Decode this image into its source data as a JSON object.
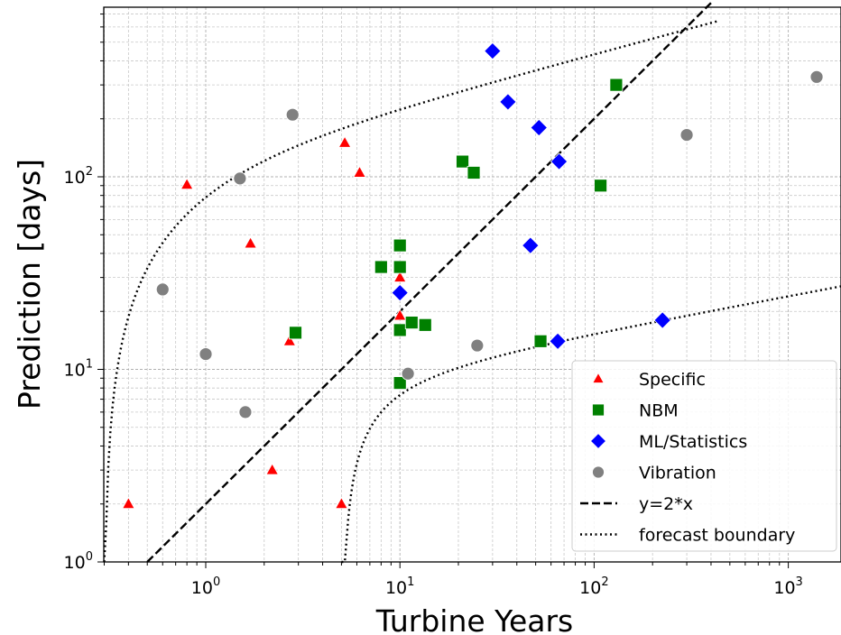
{
  "chart_data": {
    "type": "scatter",
    "xlabel": "Turbine Years",
    "ylabel": "Prediction [days]",
    "x_scale": "log",
    "y_scale": "log",
    "xlim": [
      0.3,
      1900
    ],
    "ylim": [
      1,
      800
    ],
    "grid": true,
    "legend_position": "lower-right",
    "x_ticks": [
      {
        "value": 1,
        "base": "10",
        "exp": "0"
      },
      {
        "value": 10,
        "base": "10",
        "exp": "1"
      },
      {
        "value": 100,
        "base": "10",
        "exp": "2"
      },
      {
        "value": 1000,
        "base": "10",
        "exp": "3"
      }
    ],
    "y_ticks": [
      {
        "value": 1,
        "base": "10",
        "exp": "0"
      },
      {
        "value": 10,
        "base": "10",
        "exp": "1"
      },
      {
        "value": 100,
        "base": "10",
        "exp": "2"
      }
    ],
    "series": [
      {
        "name": "Specific",
        "marker": "triangle",
        "color": "#ff0000",
        "points": [
          [
            0.4,
            2
          ],
          [
            0.8,
            91
          ],
          [
            1.7,
            45
          ],
          [
            2.2,
            3
          ],
          [
            2.7,
            14
          ],
          [
            5.0,
            2
          ],
          [
            5.2,
            150
          ],
          [
            6.2,
            105
          ],
          [
            10,
            19
          ],
          [
            10,
            30
          ]
        ]
      },
      {
        "name": "NBM",
        "marker": "square",
        "color": "#008000",
        "points": [
          [
            2.9,
            15.5
          ],
          [
            8,
            34
          ],
          [
            10,
            44
          ],
          [
            10,
            34
          ],
          [
            10,
            16
          ],
          [
            10,
            8.5
          ],
          [
            11.5,
            17.5
          ],
          [
            13.5,
            17
          ],
          [
            21,
            120
          ],
          [
            24,
            105
          ],
          [
            53,
            14
          ],
          [
            108,
            90
          ],
          [
            130,
            300
          ]
        ]
      },
      {
        "name": "ML/Statistics",
        "marker": "diamond",
        "color": "#0000ff",
        "points": [
          [
            10,
            25
          ],
          [
            30,
            450
          ],
          [
            36,
            245
          ],
          [
            47,
            44
          ],
          [
            52,
            180
          ],
          [
            65,
            14
          ],
          [
            66,
            120
          ],
          [
            225,
            18
          ]
        ]
      },
      {
        "name": "Vibration",
        "marker": "circle",
        "color": "#808080",
        "points": [
          [
            0.6,
            26
          ],
          [
            1.0,
            12
          ],
          [
            1.5,
            98
          ],
          [
            1.6,
            6
          ],
          [
            2.8,
            210
          ],
          [
            11,
            9.5
          ],
          [
            25,
            13.3
          ],
          [
            300,
            165
          ],
          [
            1400,
            330
          ]
        ]
      }
    ],
    "lines": [
      {
        "name": "y=2*x",
        "style": "dashed",
        "color": "#000000"
      },
      {
        "name": "forecast boundary",
        "style": "dotted",
        "color": "#000000"
      }
    ]
  }
}
